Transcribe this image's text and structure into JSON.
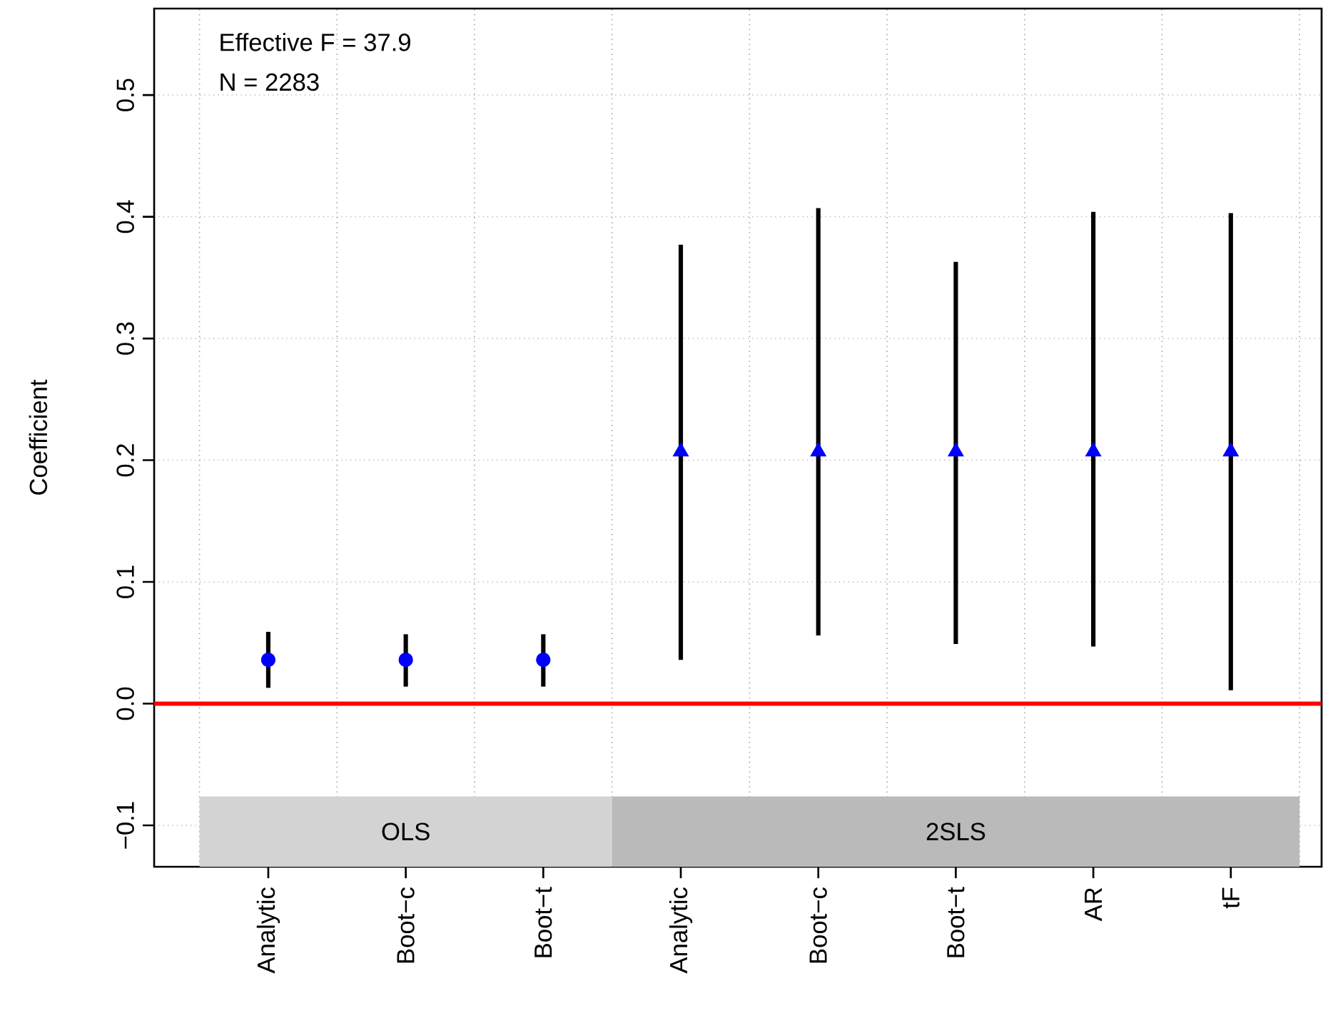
{
  "chart_data": {
    "type": "scatter",
    "ylabel": "Coefficient",
    "categories": [
      "Analytic",
      "Boot−c",
      "Boot−t",
      "Analytic",
      "Boot−c",
      "Boot−t",
      "AR",
      "tF"
    ],
    "series": [
      {
        "color": "#0000ff",
        "marker": "circle",
        "values": [
          0.036,
          0.036,
          0.036,
          null,
          null,
          null,
          null,
          null
        ],
        "errors": [
          [
            0.013,
            0.059
          ],
          [
            0.014,
            0.057
          ],
          [
            0.014,
            0.057
          ],
          null,
          null,
          null,
          null,
          null
        ]
      },
      {
        "color": "#0000ff",
        "marker": "triangle",
        "values": [
          null,
          null,
          null,
          0.207,
          0.207,
          0.207,
          0.207,
          0.207
        ],
        "errors": [
          null,
          null,
          null,
          [
            0.036,
            0.377
          ],
          [
            0.056,
            0.407
          ],
          [
            0.049,
            0.363
          ],
          [
            0.047,
            0.404
          ],
          [
            0.011,
            0.403
          ]
        ]
      }
    ],
    "ylim": [
      -0.134,
      0.571
    ],
    "yticks": [
      {
        "value": -0.1,
        "label": "−0.1"
      },
      {
        "value": 0,
        "label": "0.0"
      },
      0.1,
      0.2,
      0.3,
      0.4,
      0.5
    ],
    "grid": true,
    "ref_lines": [
      {
        "axis": "y",
        "value": 0,
        "color": "#ff0000"
      }
    ],
    "bands": [
      {
        "axis": "x",
        "from": "Analytic",
        "to": "Boot−t",
        "label": "OLS",
        "color": "#d3d3d3"
      },
      {
        "axis": "x",
        "from": "Boot−t",
        "to": "tF",
        "label": "2SLS",
        "color": "#bababa"
      }
    ],
    "annotations": [
      "Effective F = 37.9",
      "N = 2283"
    ]
  }
}
